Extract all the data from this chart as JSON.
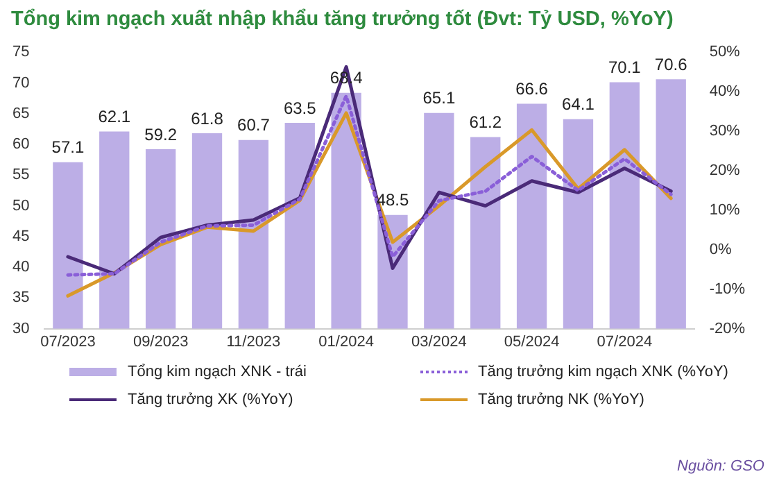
{
  "chart_data": {
    "type": "bar",
    "title": "Tổng kim ngạch xuất nhập khẩu tăng trưởng tốt (Đvt: Tỷ USD, %YoY)",
    "categories": [
      "07/2023",
      null,
      "09/2023",
      null,
      "11/2023",
      null,
      "01/2024",
      null,
      "03/2024",
      null,
      "05/2024",
      null,
      "07/2024",
      null
    ],
    "series": [
      {
        "name": "Tổng kim ngạch XNK - trái",
        "color": "#bcaee6",
        "values": [
          57.1,
          62.1,
          59.2,
          61.8,
          60.7,
          63.5,
          68.4,
          48.5,
          65.1,
          61.2,
          66.6,
          64.1,
          70.1,
          70.6
        ],
        "value_labels": [
          "57.1",
          "62.1",
          "59.2",
          "61.8",
          "60.7",
          "63.5",
          "68.4",
          "48.5",
          "65.1",
          "61.2",
          "66.6",
          "64.1",
          "70.1",
          "70.6"
        ]
      },
      {
        "name": "Tăng trưởng kim ngạch XNK (%YoY)",
        "type": "line",
        "axis": "y2",
        "line_style": "dotted",
        "color": "#8a5fd8",
        "values": [
          -6.4,
          -6.1,
          1.9,
          6,
          6.2,
          12.8,
          38.9,
          -1.8,
          12.4,
          14.8,
          23.6,
          15,
          23,
          14
        ]
      },
      {
        "name": "Tăng trưởng XK (%YoY)",
        "type": "line",
        "axis": "y2",
        "line_style": "solid",
        "color": "#4a2a78",
        "values": [
          -1.8,
          -6.1,
          3.1,
          6.2,
          7.5,
          13.1,
          46.3,
          -4.7,
          14.5,
          11.1,
          17.4,
          14.5,
          20.6,
          14.8
        ]
      },
      {
        "name": "Tăng trưởng NK (%YoY)",
        "type": "line",
        "axis": "y2",
        "line_style": "solid",
        "color": "#d9992a",
        "values": [
          -11.7,
          -5.9,
          1.3,
          5.7,
          4.7,
          12.5,
          34.6,
          1.9,
          11.1,
          21,
          30.3,
          15.4,
          25.3,
          13
        ]
      }
    ],
    "ylim": [
      30,
      75
    ],
    "yticks": [
      30,
      35,
      40,
      45,
      50,
      55,
      60,
      65,
      70,
      75
    ],
    "y2lim": [
      -20,
      50
    ],
    "y2ticks": [
      {
        "value": -20,
        "label": "-20%"
      },
      {
        "value": -10,
        "label": "-10%"
      },
      {
        "value": 0,
        "label": "0%"
      },
      {
        "value": 10,
        "label": "10%"
      },
      {
        "value": 20,
        "label": "20%"
      },
      {
        "value": 30,
        "label": "30%"
      },
      {
        "value": 40,
        "label": "40%"
      },
      {
        "value": 50,
        "label": "50%"
      }
    ],
    "grid": false,
    "legend": "bottom",
    "marker": "none",
    "annotations": [
      "Nguồn: GSO"
    ]
  }
}
